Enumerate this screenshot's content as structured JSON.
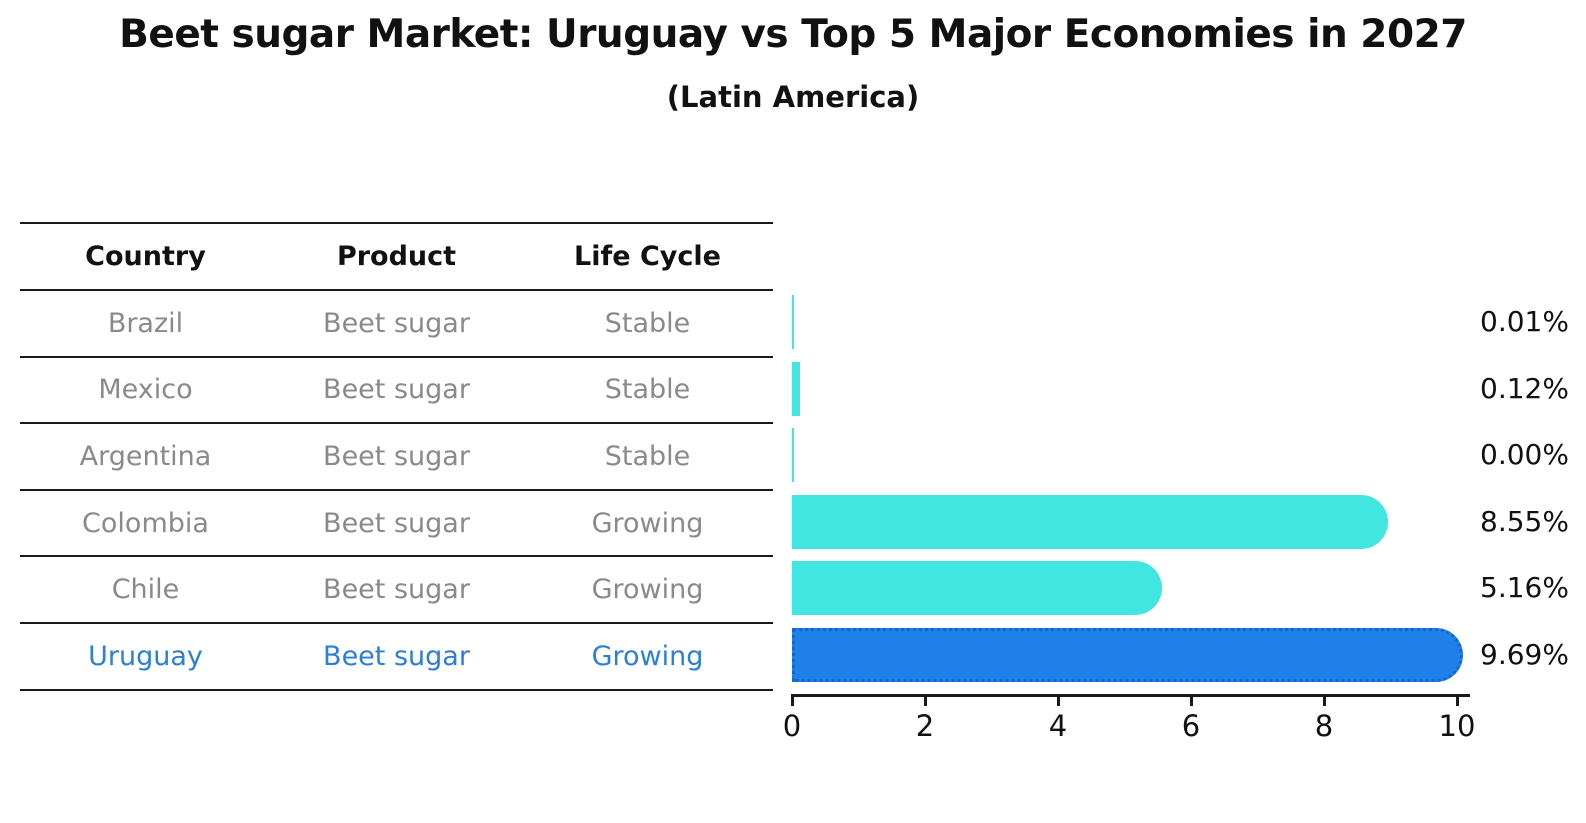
{
  "title": "Beet sugar Market: Uruguay vs Top 5 Major Economies in 2027",
  "subtitle": "(Latin America)",
  "table": {
    "headers": [
      "Country",
      "Product",
      "Life Cycle"
    ],
    "rows": [
      {
        "country": "Brazil",
        "product": "Beet sugar",
        "life_cycle": "Stable",
        "highlight": false
      },
      {
        "country": "Mexico",
        "product": "Beet sugar",
        "life_cycle": "Stable",
        "highlight": false
      },
      {
        "country": "Argentina",
        "product": "Beet sugar",
        "life_cycle": "Stable",
        "highlight": false
      },
      {
        "country": "Colombia",
        "product": "Beet sugar",
        "life_cycle": "Growing",
        "highlight": false
      },
      {
        "country": "Chile",
        "product": "Beet sugar",
        "life_cycle": "Growing",
        "highlight": false
      },
      {
        "country": "Uruguay",
        "product": "Beet sugar",
        "life_cycle": "Growing",
        "highlight": true
      }
    ]
  },
  "chart_data": {
    "type": "bar",
    "orientation": "horizontal",
    "title": "Beet sugar Market: Uruguay vs Top 5 Major Economies in 2027",
    "subtitle": "(Latin America)",
    "categories": [
      "Brazil",
      "Mexico",
      "Argentina",
      "Colombia",
      "Chile",
      "Uruguay"
    ],
    "values": [
      0.01,
      0.12,
      0.0,
      8.55,
      5.16,
      9.69
    ],
    "value_labels": [
      "0.01%",
      "0.12%",
      "0.00%",
      "8.55%",
      "5.16%",
      "9.69%"
    ],
    "xlim": [
      0,
      10
    ],
    "x_ticks": [
      "0",
      "2",
      "4",
      "6",
      "8",
      "10"
    ],
    "grid": false,
    "legend_position": "none",
    "highlight_category": "Uruguay"
  },
  "colors": {
    "background": "#ffffff",
    "text_primary": "#111111",
    "text_muted": "#8a8a8a",
    "highlight_text": "#2b7fd6",
    "axis": "#1a1a1a",
    "bar_default": "#41e6e1",
    "bar_highlight": "#1e80e8",
    "bar_highlight_border": "#1467cd"
  }
}
